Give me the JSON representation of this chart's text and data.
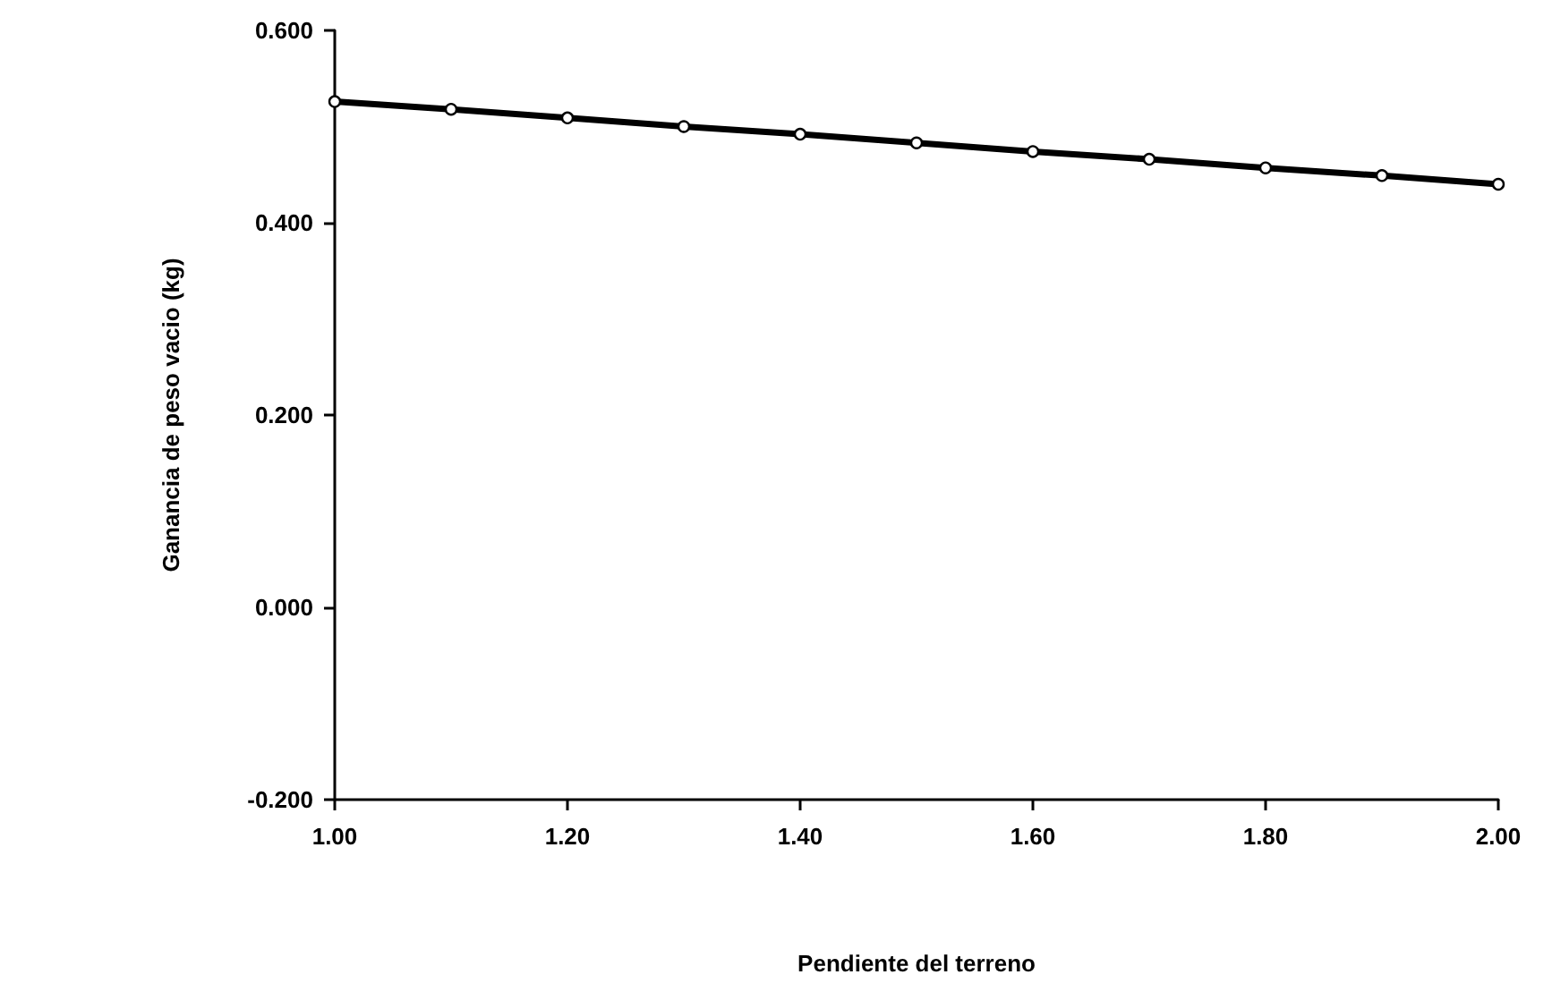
{
  "chart_data": {
    "type": "line",
    "xlabel": "Pendiente del terreno",
    "ylabel": "Ganancia de peso vacio (kg)",
    "x": [
      1.0,
      1.1,
      1.2,
      1.3,
      1.4,
      1.5,
      1.6,
      1.7,
      1.8,
      1.9,
      2.0
    ],
    "series": [
      {
        "color": "#000000",
        "values": [
          0.526,
          0.518,
          0.509,
          0.5,
          0.492,
          0.483,
          0.474,
          0.466,
          0.457,
          0.449,
          0.44
        ]
      }
    ],
    "xlim": [
      1.0,
      2.0
    ],
    "xticks": [
      {
        "value": 1.0,
        "label": "1.00"
      },
      {
        "value": 1.2,
        "label": "1.20"
      },
      {
        "value": 1.4,
        "label": "1.40"
      },
      {
        "value": 1.6,
        "label": "1.60"
      },
      {
        "value": 1.8,
        "label": "1.80"
      },
      {
        "value": 2.0,
        "label": "2.00"
      }
    ],
    "ylim": [
      -0.2,
      0.6
    ],
    "yticks": [
      {
        "value": -0.2,
        "label": "-0.200"
      },
      {
        "value": 0,
        "label": "0.000"
      },
      {
        "value": 0.2,
        "label": "0.200"
      },
      {
        "value": 0.4,
        "label": "0.400"
      },
      {
        "value": 0.6,
        "label": "0.600"
      }
    ],
    "marker": "circle",
    "line_style": "solid"
  }
}
